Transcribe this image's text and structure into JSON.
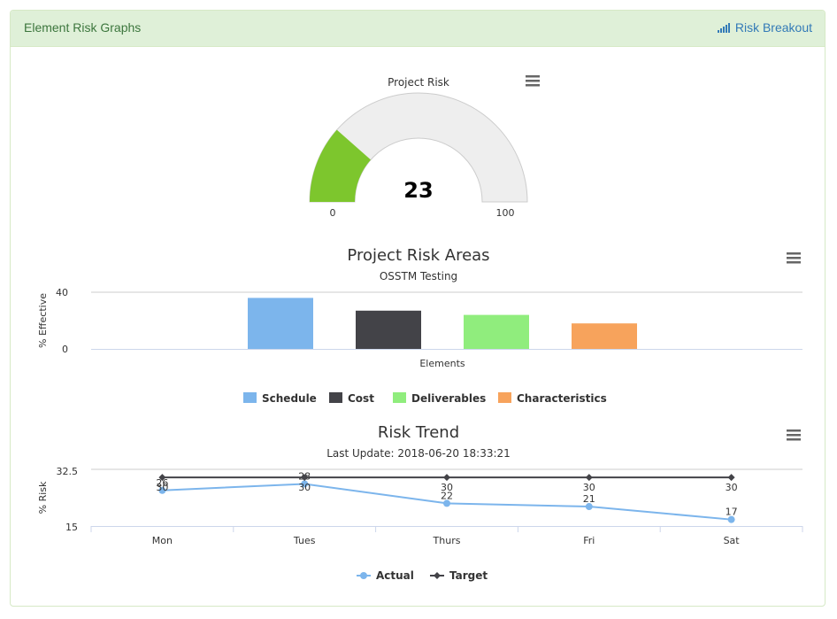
{
  "panel": {
    "title": "Element Risk Graphs",
    "breakout_label": "Risk Breakout",
    "breakout_icon": "signal-bars-icon"
  },
  "chart_data": [
    {
      "type": "gauge",
      "title": "Project Risk",
      "value": 23,
      "min": 0,
      "max": 100,
      "min_label": "0",
      "max_label": "100",
      "value_color": "#7dc62d",
      "track_color": "#eeeeee"
    },
    {
      "type": "bar",
      "title": "Project Risk Areas",
      "subtitle": "OSSTM Testing",
      "xlabel": "Elements",
      "ylabel": "% Effective",
      "ylim": [
        0,
        40
      ],
      "yticks": [
        "0",
        "40"
      ],
      "series": [
        {
          "name": "Schedule",
          "value": 36,
          "color": "#7cb5ec"
        },
        {
          "name": "Cost",
          "value": 27,
          "color": "#434348"
        },
        {
          "name": "Deliverables",
          "value": 24,
          "color": "#90ed7d"
        },
        {
          "name": "Characteristics",
          "value": 18,
          "color": "#f7a35c"
        }
      ],
      "legend": "bottom-center"
    },
    {
      "type": "line",
      "title": "Risk Trend",
      "subtitle": "Last Update: 2018-06-20 18:33:21",
      "ylabel": "% Risk",
      "ylim": [
        15,
        32.5
      ],
      "yticks": [
        "15",
        "32.5"
      ],
      "categories": [
        "Mon",
        "Tues",
        "Thurs",
        "Fri",
        "Sat"
      ],
      "series": [
        {
          "name": "Actual",
          "values": [
            26,
            28,
            22,
            21,
            17
          ],
          "labels": [
            "26",
            "28",
            "22",
            "21",
            "17"
          ],
          "color": "#7cb5ec"
        },
        {
          "name": "Target",
          "values": [
            30,
            30,
            30,
            30,
            30
          ],
          "labels": [
            "30",
            "30",
            "30",
            "30",
            "30"
          ],
          "color": "#434348"
        }
      ],
      "legend": "bottom-center"
    }
  ]
}
